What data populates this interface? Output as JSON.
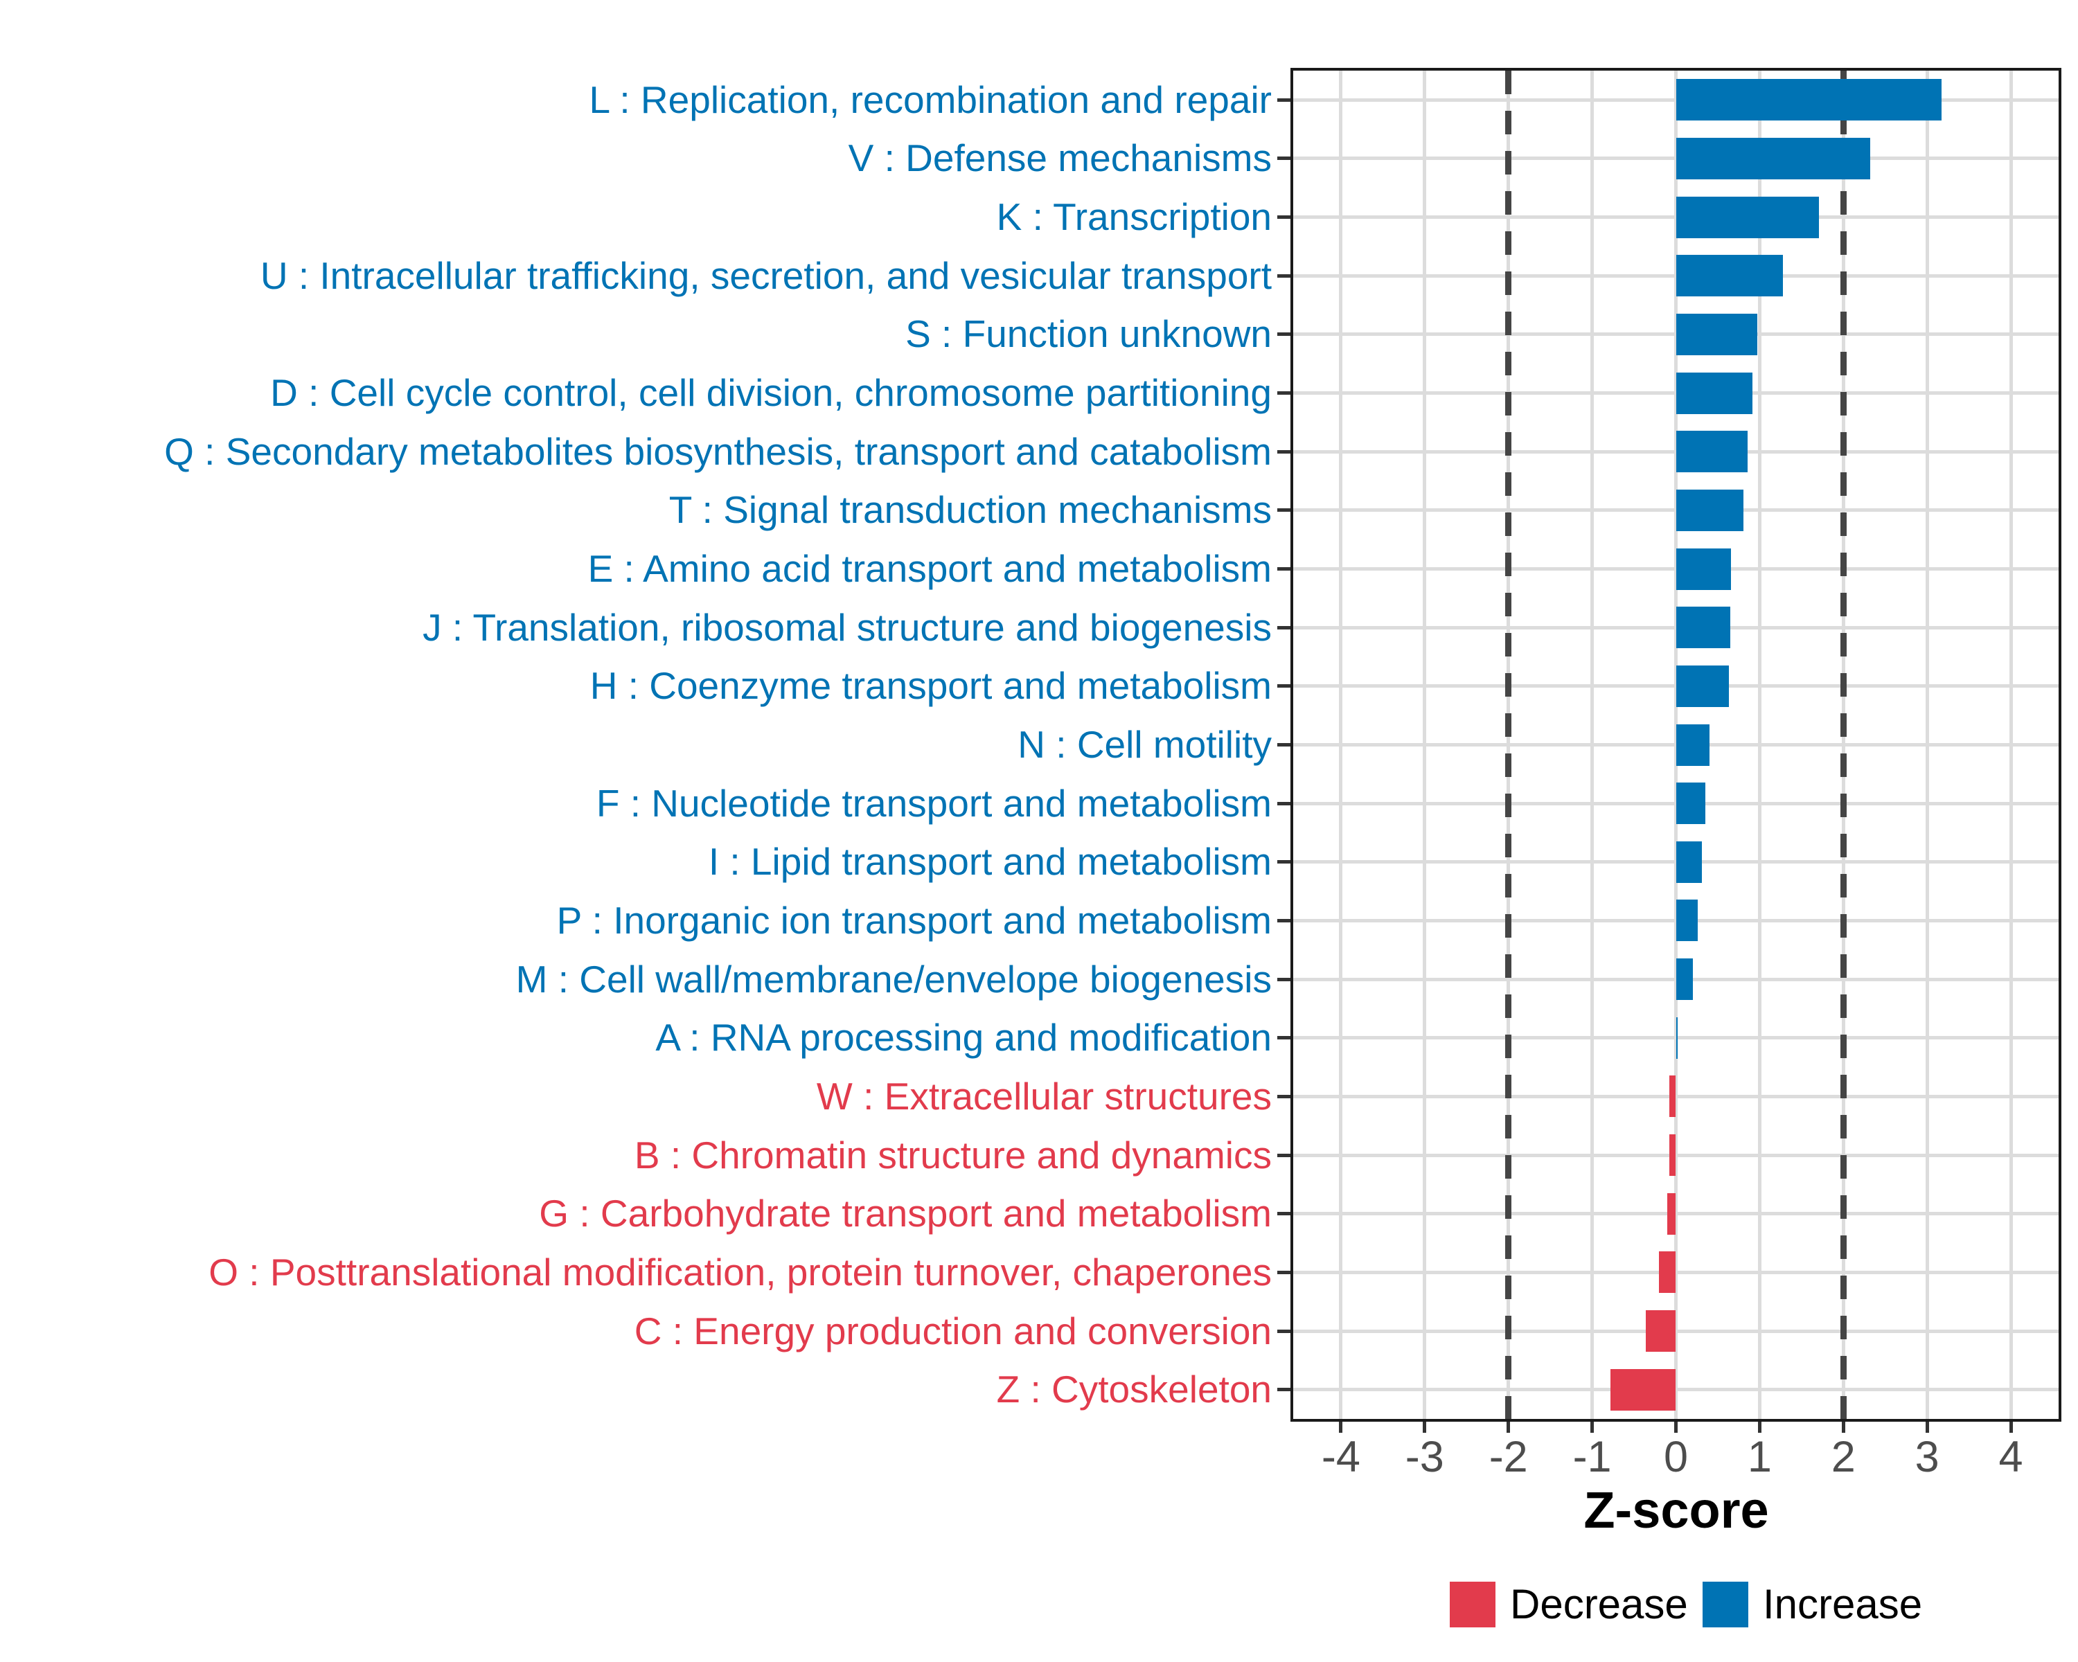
{
  "chart_data": {
    "type": "bar",
    "orientation": "horizontal",
    "title": "",
    "xlabel": "Z-score",
    "ylabel": "",
    "xlim": [
      -4.57,
      4.57
    ],
    "x_ticks": [
      -4,
      -3,
      -2,
      -1,
      0,
      1,
      2,
      3,
      4
    ],
    "reference_lines": [
      -2,
      2
    ],
    "grid": true,
    "legend_position": "bottom",
    "bar_groups": {
      "increase_label": "Increase",
      "decrease_label": "Decrease"
    },
    "series": [
      {
        "label": "L : Replication, recombination and repair",
        "value": 3.17,
        "group": "Increase"
      },
      {
        "label": "V : Defense mechanisms",
        "value": 2.32,
        "group": "Increase"
      },
      {
        "label": "K : Transcription",
        "value": 1.71,
        "group": "Increase"
      },
      {
        "label": "U : Intracellular trafficking, secretion, and vesicular transport",
        "value": 1.28,
        "group": "Increase"
      },
      {
        "label": "S : Function unknown",
        "value": 0.97,
        "group": "Increase"
      },
      {
        "label": "D : Cell cycle control, cell division, chromosome partitioning",
        "value": 0.91,
        "group": "Increase"
      },
      {
        "label": "Q : Secondary metabolites biosynthesis, transport and catabolism",
        "value": 0.86,
        "group": "Increase"
      },
      {
        "label": "T : Signal transduction mechanisms",
        "value": 0.81,
        "group": "Increase"
      },
      {
        "label": "E : Amino acid transport and metabolism",
        "value": 0.66,
        "group": "Increase"
      },
      {
        "label": "J : Translation, ribosomal structure and biogenesis",
        "value": 0.65,
        "group": "Increase"
      },
      {
        "label": "H : Coenzyme transport and metabolism",
        "value": 0.63,
        "group": "Increase"
      },
      {
        "label": "N : Cell motility",
        "value": 0.4,
        "group": "Increase"
      },
      {
        "label": "F : Nucleotide transport and metabolism",
        "value": 0.35,
        "group": "Increase"
      },
      {
        "label": "I : Lipid transport and metabolism",
        "value": 0.31,
        "group": "Increase"
      },
      {
        "label": "P : Inorganic ion transport and metabolism",
        "value": 0.26,
        "group": "Increase"
      },
      {
        "label": "M : Cell wall/membrane/envelope biogenesis",
        "value": 0.2,
        "group": "Increase"
      },
      {
        "label": "A : RNA processing and modification",
        "value": 0.02,
        "group": "Increase"
      },
      {
        "label": "W : Extracellular structures",
        "value": -0.08,
        "group": "Decrease"
      },
      {
        "label": "B : Chromatin structure and dynamics",
        "value": -0.08,
        "group": "Decrease"
      },
      {
        "label": "G : Carbohydrate transport and metabolism",
        "value": -0.1,
        "group": "Decrease"
      },
      {
        "label": "O : Posttranslational modification, protein turnover, chaperones",
        "value": -0.2,
        "group": "Decrease"
      },
      {
        "label": "C : Energy production and conversion",
        "value": -0.36,
        "group": "Decrease"
      },
      {
        "label": "Z : Cytoskeleton",
        "value": -0.78,
        "group": "Decrease"
      }
    ]
  },
  "legend": {
    "items": [
      {
        "label": "Decrease",
        "color": "#E23B4C"
      },
      {
        "label": "Increase",
        "color": "#0073B4"
      }
    ]
  },
  "colors": {
    "increase": "#0073B4",
    "decrease": "#E23B4C",
    "gridline": "#DCDCDC",
    "reference_line": "#454545",
    "tick_label": "#4D4D4D",
    "axis_border": "#1A1A1A"
  }
}
